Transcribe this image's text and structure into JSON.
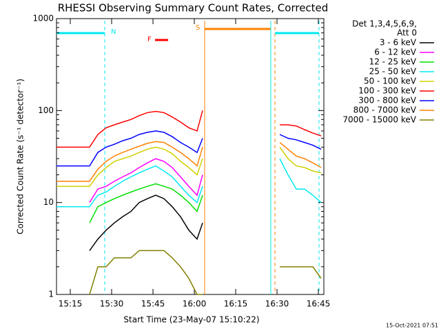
{
  "chart_data": {
    "type": "line",
    "title": "RHESSI Observing Summary Count Rates, Corrected",
    "x_label": "Start Time (23-May-07 15:10:22)",
    "y_label": "Corrected Count Rate (s⁻¹ detector⁻¹)",
    "footer": "15-Oct-2021 07:51",
    "legend_title": [
      "Det 1,3,4,5,6,9,",
      "Att 0"
    ],
    "legend_position": "right",
    "log_scale_y": true,
    "annotations": [
      "N",
      "S",
      "F"
    ],
    "x": [
      "15:10",
      "15:13",
      "15:16",
      "15:19",
      "15:22",
      "15:25",
      "15:28",
      "15:31",
      "15:34",
      "15:37",
      "15:40",
      "15:43",
      "15:46",
      "15:49",
      "15:52",
      "15:55",
      "15:58",
      "16:01",
      "16:03",
      "16:15",
      "16:31",
      "16:34",
      "16:37",
      "16:40",
      "16:43",
      "16:46"
    ],
    "xlim": [
      "15:10",
      "16:47"
    ],
    "xticks": [
      "15:15",
      "15:30",
      "15:45",
      "16:00",
      "16:15",
      "16:30",
      "16:45"
    ],
    "ylim": [
      1,
      1000
    ],
    "yticks": [
      1,
      10,
      100,
      1000
    ],
    "series": [
      {
        "name": "3 - 6 keV",
        "color": "#000000",
        "values": [
          null,
          null,
          null,
          null,
          3,
          4,
          5,
          6,
          7,
          8,
          10,
          11,
          12,
          11,
          9,
          7,
          5,
          4,
          6,
          null,
          null,
          null,
          null,
          null,
          null,
          null
        ]
      },
      {
        "name": "6 - 12 keV",
        "color": "#ff00ff",
        "values": [
          null,
          null,
          null,
          null,
          10,
          14,
          15,
          17,
          19,
          21,
          24,
          27,
          30,
          28,
          24,
          19,
          15,
          12,
          20,
          null,
          null,
          null,
          null,
          null,
          null,
          null
        ]
      },
      {
        "name": "12 - 25 keV",
        "color": "#00e000",
        "values": [
          null,
          null,
          null,
          null,
          6,
          9,
          10,
          11,
          12,
          13,
          14,
          15,
          16,
          15,
          14,
          12,
          10,
          8,
          12,
          null,
          null,
          null,
          null,
          null,
          null,
          null
        ]
      },
      {
        "name": "25 - 50 keV",
        "color": "#00e8f0",
        "values": [
          9,
          9,
          9,
          9,
          9,
          12,
          13,
          15,
          17,
          19,
          21,
          23,
          25,
          22,
          19,
          15,
          12,
          10,
          15,
          null,
          30,
          20,
          14,
          14,
          12,
          10
        ]
      },
      {
        "name": "50 - 100 keV",
        "color": "#d0d000",
        "values": [
          15,
          15,
          15,
          15,
          15,
          20,
          24,
          28,
          30,
          32,
          35,
          38,
          40,
          38,
          34,
          28,
          24,
          20,
          30,
          null,
          40,
          30,
          25,
          24,
          22,
          21
        ]
      },
      {
        "name": "100 - 300 keV",
        "color": "#ff0000",
        "values": [
          40,
          40,
          40,
          40,
          40,
          55,
          65,
          70,
          75,
          80,
          88,
          95,
          98,
          95,
          85,
          75,
          65,
          60,
          100,
          null,
          70,
          70,
          68,
          62,
          57,
          53
        ]
      },
      {
        "name": "300 - 800 keV",
        "color": "#0000ff",
        "values": [
          25,
          25,
          25,
          25,
          25,
          35,
          40,
          43,
          47,
          50,
          55,
          58,
          60,
          58,
          52,
          45,
          40,
          35,
          50,
          null,
          55,
          50,
          48,
          45,
          42,
          38
        ]
      },
      {
        "name": "800 - 7000 keV",
        "color": "#ff8000",
        "values": [
          17,
          17,
          17,
          17,
          17,
          23,
          28,
          32,
          35,
          38,
          41,
          44,
          46,
          45,
          40,
          35,
          30,
          25,
          40,
          null,
          45,
          38,
          32,
          30,
          27,
          24
        ]
      },
      {
        "name": "7000 - 15000 keV",
        "color": "#808000",
        "values": [
          null,
          null,
          null,
          null,
          1,
          2,
          2,
          2.5,
          2.5,
          2.5,
          3,
          3,
          3,
          3,
          2.5,
          2,
          1.5,
          1,
          1,
          null,
          2,
          2,
          2,
          2,
          2,
          1.5
        ]
      }
    ]
  }
}
